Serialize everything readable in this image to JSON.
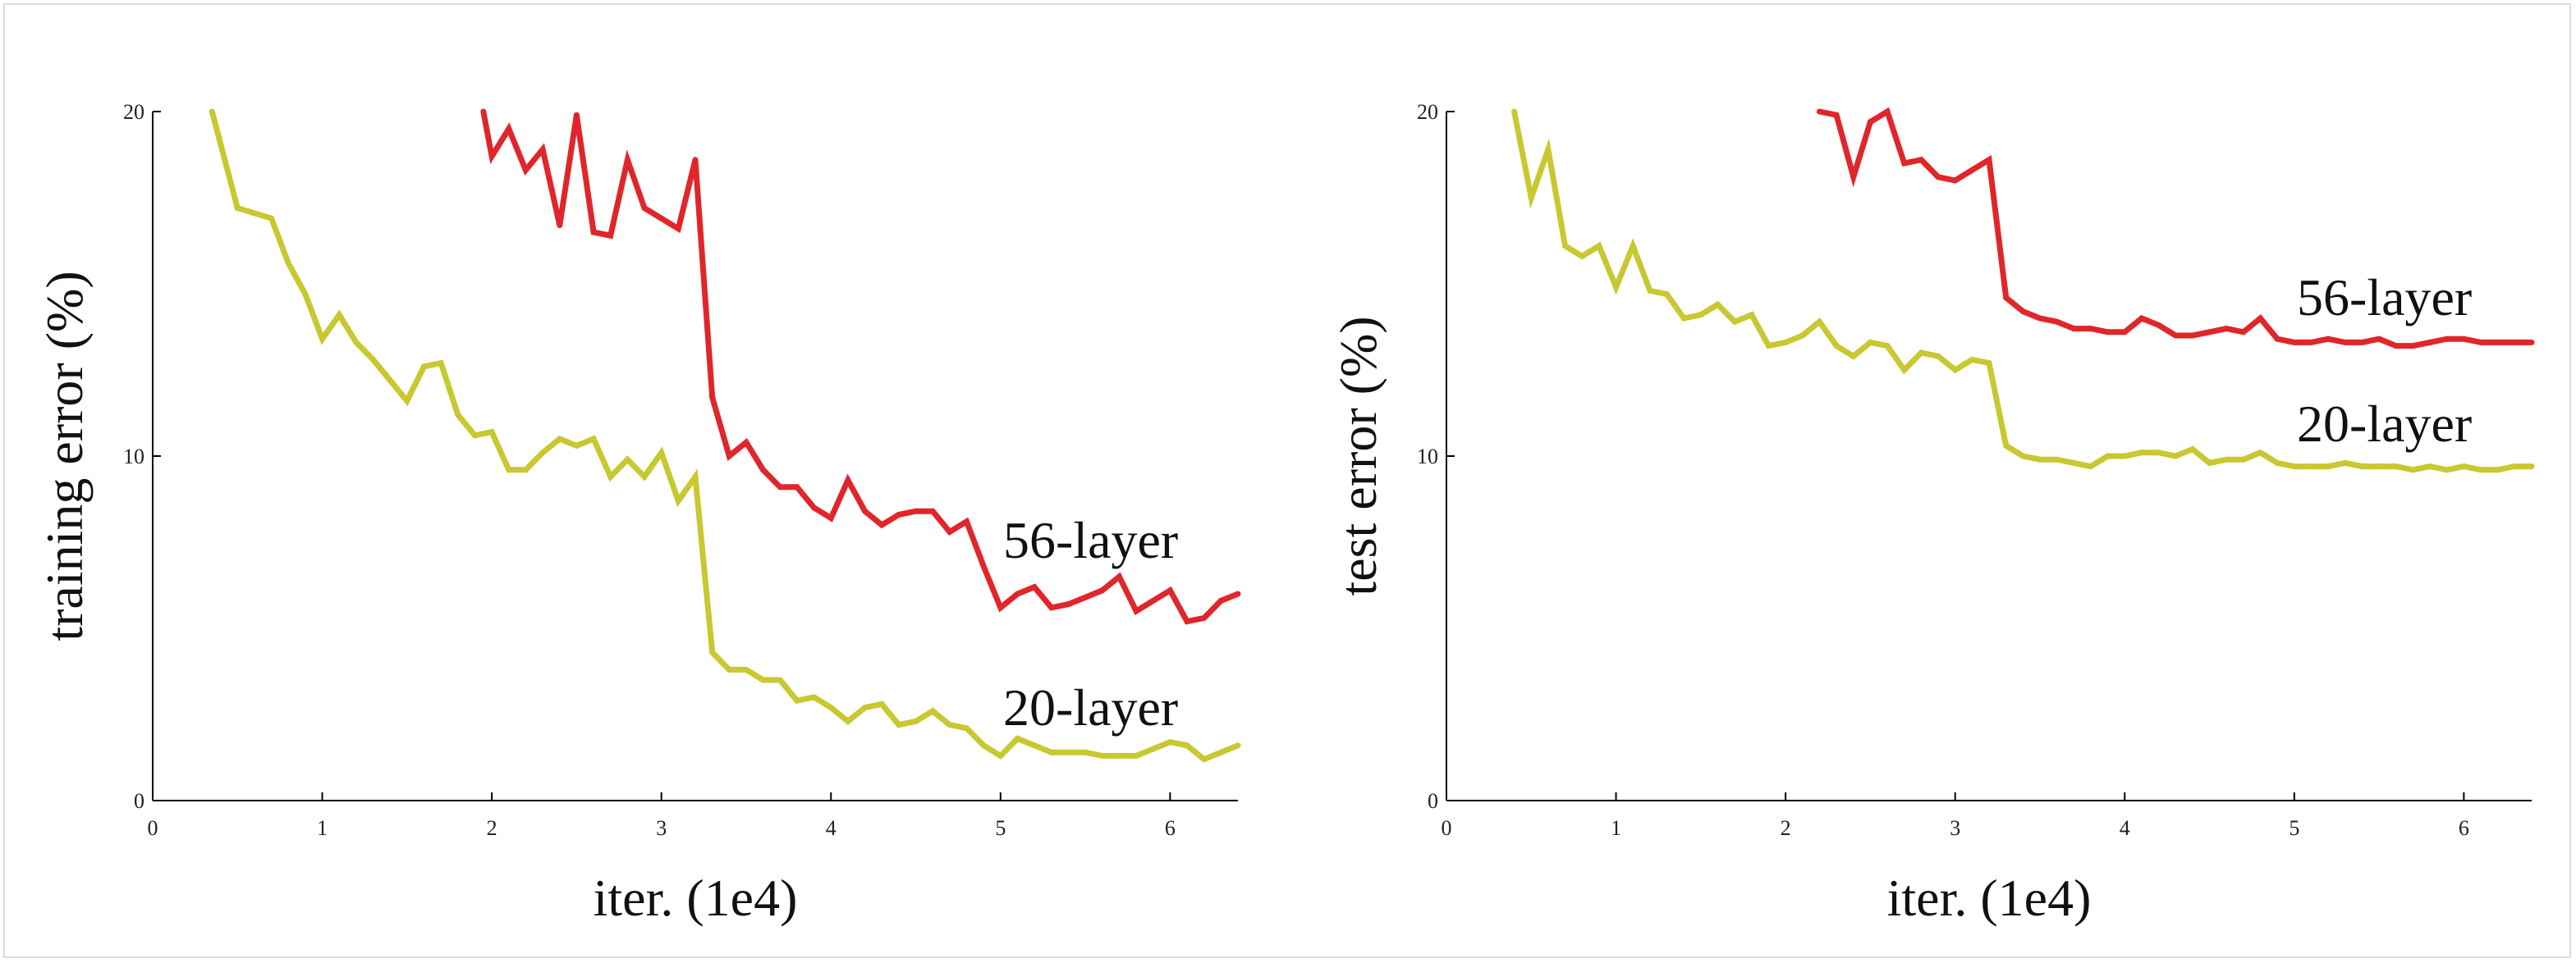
{
  "colors": {
    "series_56": "#e0262b",
    "series_20": "#c8c830",
    "axis": "#000000"
  },
  "chart_data": [
    {
      "type": "line",
      "xlabel": "iter. (1e4)",
      "ylabel": "training error (%)",
      "xlim": [
        0,
        6.4
      ],
      "ylim": [
        0,
        20
      ],
      "xticks": [
        "0",
        "1",
        "2",
        "3",
        "4",
        "5",
        "6"
      ],
      "yticks": [
        "0",
        "10",
        "20"
      ],
      "grid": false,
      "series": [
        {
          "name": "56-layer",
          "x": [
            1.95,
            2.0,
            2.1,
            2.2,
            2.3,
            2.4,
            2.5,
            2.6,
            2.7,
            2.8,
            2.9,
            3.0,
            3.1,
            3.2,
            3.3,
            3.4,
            3.5,
            3.6,
            3.7,
            3.8,
            3.9,
            4.0,
            4.1,
            4.2,
            4.3,
            4.4,
            4.5,
            4.6,
            4.7,
            4.8,
            4.9,
            5.0,
            5.1,
            5.2,
            5.3,
            5.4,
            5.5,
            5.6,
            5.7,
            5.8,
            5.9,
            6.0,
            6.1,
            6.2,
            6.3,
            6.4
          ],
          "y": [
            20.0,
            18.7,
            19.5,
            18.3,
            18.9,
            16.7,
            19.9,
            16.5,
            16.4,
            18.6,
            17.2,
            16.9,
            16.6,
            18.6,
            11.7,
            10.0,
            10.4,
            9.6,
            9.1,
            9.1,
            8.5,
            8.2,
            9.3,
            8.4,
            8.0,
            8.3,
            8.4,
            8.4,
            7.8,
            8.1,
            6.8,
            5.6,
            6.0,
            6.2,
            5.6,
            5.7,
            5.9,
            6.1,
            6.5,
            5.5,
            5.8,
            6.1,
            5.2,
            5.3,
            5.8,
            6.0
          ]
        },
        {
          "name": "20-layer",
          "x": [
            0.35,
            0.5,
            0.7,
            0.8,
            0.9,
            1.0,
            1.1,
            1.2,
            1.3,
            1.4,
            1.5,
            1.6,
            1.7,
            1.8,
            1.9,
            2.0,
            2.1,
            2.2,
            2.3,
            2.4,
            2.5,
            2.6,
            2.7,
            2.8,
            2.9,
            3.0,
            3.1,
            3.2,
            3.3,
            3.4,
            3.5,
            3.6,
            3.7,
            3.8,
            3.9,
            4.0,
            4.1,
            4.2,
            4.3,
            4.4,
            4.5,
            4.6,
            4.7,
            4.8,
            4.9,
            5.0,
            5.1,
            5.2,
            5.3,
            5.4,
            5.5,
            5.6,
            5.7,
            5.8,
            5.9,
            6.0,
            6.1,
            6.2,
            6.3,
            6.4
          ],
          "y": [
            20.0,
            17.2,
            16.9,
            15.6,
            14.7,
            13.4,
            14.1,
            13.3,
            12.8,
            12.2,
            11.6,
            12.6,
            12.7,
            11.2,
            10.6,
            10.7,
            9.6,
            9.6,
            10.1,
            10.5,
            10.3,
            10.5,
            9.4,
            9.9,
            9.4,
            10.1,
            8.7,
            9.4,
            4.3,
            3.8,
            3.8,
            3.5,
            3.5,
            2.9,
            3.0,
            2.7,
            2.3,
            2.7,
            2.8,
            2.2,
            2.3,
            2.6,
            2.2,
            2.1,
            1.6,
            1.3,
            1.8,
            1.6,
            1.4,
            1.4,
            1.4,
            1.3,
            1.3,
            1.3,
            1.5,
            1.7,
            1.6,
            1.2,
            1.4,
            1.6
          ]
        }
      ]
    },
    {
      "type": "line",
      "xlabel": "iter. (1e4)",
      "ylabel": "test error (%)",
      "xlim": [
        0,
        6.4
      ],
      "ylim": [
        0,
        20
      ],
      "xticks": [
        "0",
        "1",
        "2",
        "3",
        "4",
        "5",
        "6"
      ],
      "yticks": [
        "0",
        "10",
        "20"
      ],
      "grid": false,
      "series": [
        {
          "name": "56-layer",
          "x": [
            2.2,
            2.3,
            2.4,
            2.5,
            2.6,
            2.7,
            2.8,
            2.9,
            3.0,
            3.1,
            3.2,
            3.3,
            3.4,
            3.5,
            3.6,
            3.7,
            3.8,
            3.9,
            4.0,
            4.1,
            4.2,
            4.3,
            4.4,
            4.5,
            4.6,
            4.7,
            4.8,
            4.9,
            5.0,
            5.1,
            5.2,
            5.3,
            5.4,
            5.5,
            5.6,
            5.7,
            5.8,
            5.9,
            6.0,
            6.1,
            6.2,
            6.3,
            6.4
          ],
          "y": [
            20.0,
            19.9,
            18.1,
            19.7,
            20.0,
            18.5,
            18.6,
            18.1,
            18.0,
            18.3,
            18.6,
            14.6,
            14.2,
            14.0,
            13.9,
            13.7,
            13.7,
            13.6,
            13.6,
            14.0,
            13.8,
            13.5,
            13.5,
            13.6,
            13.7,
            13.6,
            14.0,
            13.4,
            13.3,
            13.3,
            13.4,
            13.3,
            13.3,
            13.4,
            13.2,
            13.2,
            13.3,
            13.4,
            13.4,
            13.3,
            13.3,
            13.3,
            13.3
          ]
        },
        {
          "name": "20-layer",
          "x": [
            0.4,
            0.5,
            0.6,
            0.7,
            0.8,
            0.9,
            1.0,
            1.1,
            1.2,
            1.3,
            1.4,
            1.5,
            1.6,
            1.7,
            1.8,
            1.9,
            2.0,
            2.1,
            2.2,
            2.3,
            2.4,
            2.5,
            2.6,
            2.7,
            2.8,
            2.9,
            3.0,
            3.1,
            3.2,
            3.3,
            3.4,
            3.5,
            3.6,
            3.7,
            3.8,
            3.9,
            4.0,
            4.1,
            4.2,
            4.3,
            4.4,
            4.5,
            4.6,
            4.7,
            4.8,
            4.9,
            5.0,
            5.1,
            5.2,
            5.3,
            5.4,
            5.5,
            5.6,
            5.7,
            5.8,
            5.9,
            6.0,
            6.1,
            6.2,
            6.3,
            6.4
          ],
          "y": [
            20.0,
            17.5,
            18.9,
            16.1,
            15.8,
            16.1,
            14.9,
            16.1,
            14.8,
            14.7,
            14.0,
            14.1,
            14.4,
            13.9,
            14.1,
            13.2,
            13.3,
            13.5,
            13.9,
            13.2,
            12.9,
            13.3,
            13.2,
            12.5,
            13.0,
            12.9,
            12.5,
            12.8,
            12.7,
            10.3,
            10.0,
            9.9,
            9.9,
            9.8,
            9.7,
            10.0,
            10.0,
            10.1,
            10.1,
            10.0,
            10.2,
            9.8,
            9.9,
            9.9,
            10.1,
            9.8,
            9.7,
            9.7,
            9.7,
            9.8,
            9.7,
            9.7,
            9.7,
            9.6,
            9.7,
            9.6,
            9.7,
            9.6,
            9.6,
            9.7,
            9.7
          ]
        }
      ]
    }
  ]
}
